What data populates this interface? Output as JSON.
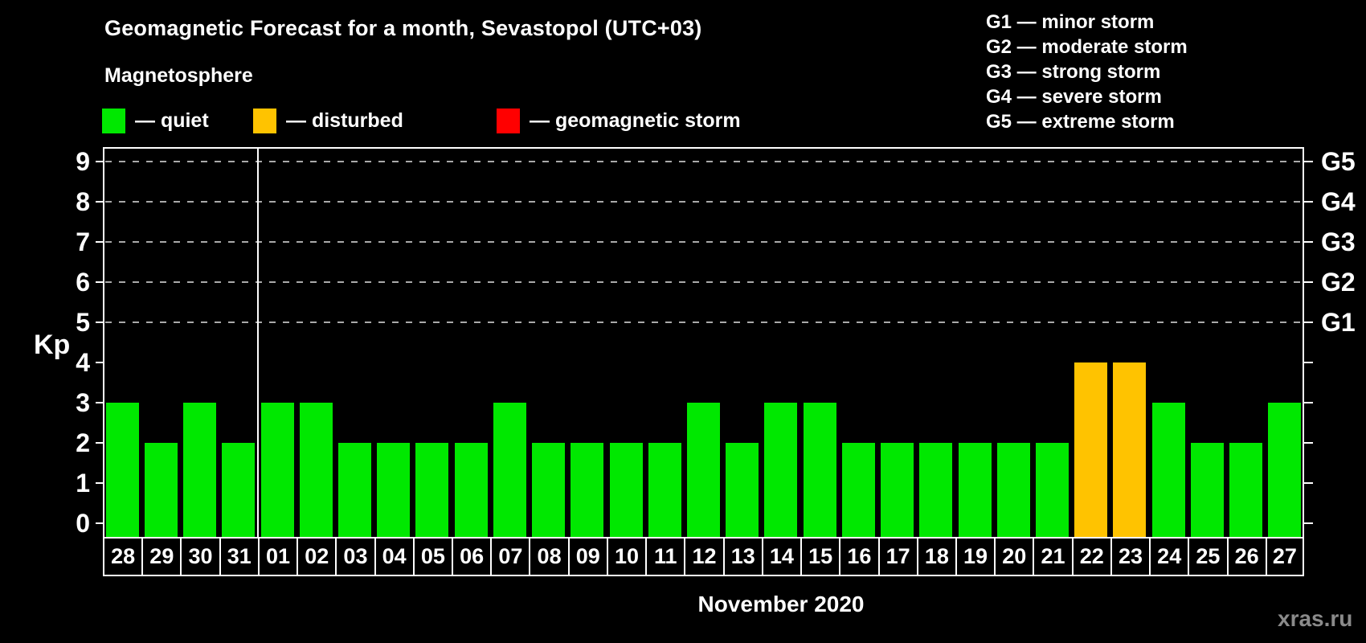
{
  "header": {
    "title": "Geomagnetic Forecast for a month, Sevastopol (UTC+03)",
    "subtitle": "Magnetosphere"
  },
  "legend": {
    "items": [
      {
        "key": "quiet",
        "label": "— quiet",
        "color": "#00e800"
      },
      {
        "key": "disturbed",
        "label": "— disturbed",
        "color": "#ffc300"
      },
      {
        "key": "storm",
        "label": "— geomagnetic storm",
        "color": "#ff0000"
      }
    ]
  },
  "g_scale_legend": [
    "G1 — minor storm",
    "G2 — moderate storm",
    "G3 — strong storm",
    "G4 — severe storm",
    "G5 — extreme storm"
  ],
  "chart_data": {
    "type": "bar",
    "title": "Geomagnetic Forecast for a month, Sevastopol (UTC+03)",
    "ylabel": "Kp",
    "xlabel": "November 2020",
    "ylim": [
      0,
      9
    ],
    "yticks": [
      0,
      1,
      2,
      3,
      4,
      5,
      6,
      7,
      8,
      9
    ],
    "gridlines_at": [
      5,
      6,
      7,
      8,
      9
    ],
    "grid": "dashed horizontal at storm levels only",
    "legend_position": "top",
    "right_axis": [
      {
        "value": 5,
        "label": "G1"
      },
      {
        "value": 6,
        "label": "G2"
      },
      {
        "value": 7,
        "label": "G3"
      },
      {
        "value": 8,
        "label": "G4"
      },
      {
        "value": 9,
        "label": "G5"
      }
    ],
    "month_boundary_after_index": 3,
    "status_colors": {
      "quiet": "#00e800",
      "disturbed": "#ffc300",
      "storm": "#ff0000"
    },
    "days": [
      {
        "day": "28",
        "kp": 3,
        "status": "quiet"
      },
      {
        "day": "29",
        "kp": 2,
        "status": "quiet"
      },
      {
        "day": "30",
        "kp": 3,
        "status": "quiet"
      },
      {
        "day": "31",
        "kp": 2,
        "status": "quiet"
      },
      {
        "day": "01",
        "kp": 3,
        "status": "quiet"
      },
      {
        "day": "02",
        "kp": 3,
        "status": "quiet"
      },
      {
        "day": "03",
        "kp": 2,
        "status": "quiet"
      },
      {
        "day": "04",
        "kp": 2,
        "status": "quiet"
      },
      {
        "day": "05",
        "kp": 2,
        "status": "quiet"
      },
      {
        "day": "06",
        "kp": 2,
        "status": "quiet"
      },
      {
        "day": "07",
        "kp": 3,
        "status": "quiet"
      },
      {
        "day": "08",
        "kp": 2,
        "status": "quiet"
      },
      {
        "day": "09",
        "kp": 2,
        "status": "quiet"
      },
      {
        "day": "10",
        "kp": 2,
        "status": "quiet"
      },
      {
        "day": "11",
        "kp": 2,
        "status": "quiet"
      },
      {
        "day": "12",
        "kp": 3,
        "status": "quiet"
      },
      {
        "day": "13",
        "kp": 2,
        "status": "quiet"
      },
      {
        "day": "14",
        "kp": 3,
        "status": "quiet"
      },
      {
        "day": "15",
        "kp": 3,
        "status": "quiet"
      },
      {
        "day": "16",
        "kp": 2,
        "status": "quiet"
      },
      {
        "day": "17",
        "kp": 2,
        "status": "quiet"
      },
      {
        "day": "18",
        "kp": 2,
        "status": "quiet"
      },
      {
        "day": "19",
        "kp": 2,
        "status": "quiet"
      },
      {
        "day": "20",
        "kp": 2,
        "status": "quiet"
      },
      {
        "day": "21",
        "kp": 2,
        "status": "quiet"
      },
      {
        "day": "22",
        "kp": 4,
        "status": "disturbed"
      },
      {
        "day": "23",
        "kp": 4,
        "status": "disturbed"
      },
      {
        "day": "24",
        "kp": 3,
        "status": "quiet"
      },
      {
        "day": "25",
        "kp": 2,
        "status": "quiet"
      },
      {
        "day": "26",
        "kp": 2,
        "status": "quiet"
      },
      {
        "day": "27",
        "kp": 3,
        "status": "quiet"
      }
    ]
  },
  "footer": {
    "caption": "November 2020",
    "watermark": "xras.ru"
  }
}
